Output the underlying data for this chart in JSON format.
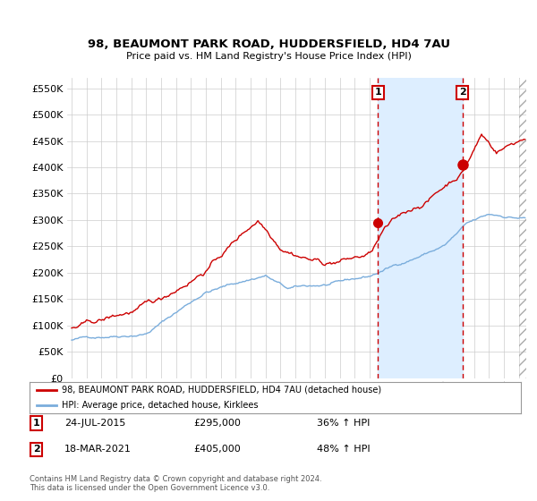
{
  "title1": "98, BEAUMONT PARK ROAD, HUDDERSFIELD, HD4 7AU",
  "title2": "Price paid vs. HM Land Registry's House Price Index (HPI)",
  "legend_label1": "98, BEAUMONT PARK ROAD, HUDDERSFIELD, HD4 7AU (detached house)",
  "legend_label2": "HPI: Average price, detached house, Kirklees",
  "transaction1_date": "24-JUL-2015",
  "transaction1_price": "£295,000",
  "transaction1_hpi": "36% ↑ HPI",
  "transaction1_year": 2015.56,
  "transaction1_value": 295000,
  "transaction2_date": "18-MAR-2021",
  "transaction2_price": "£405,000",
  "transaction2_hpi": "48% ↑ HPI",
  "transaction2_year": 2021.21,
  "transaction2_value": 405000,
  "footer": "Contains HM Land Registry data © Crown copyright and database right 2024.\nThis data is licensed under the Open Government Licence v3.0.",
  "ylim": [
    0,
    570000
  ],
  "yticks": [
    0,
    50000,
    100000,
    150000,
    200000,
    250000,
    300000,
    350000,
    400000,
    450000,
    500000,
    550000
  ],
  "xlim_start": 1994.7,
  "xlim_end": 2025.5,
  "line_color_red": "#cc0000",
  "line_color_blue": "#7aaddc",
  "vline_color": "#cc0000",
  "background_color": "#ffffff",
  "shade_color": "#ddeeff",
  "grid_color": "#cccccc"
}
